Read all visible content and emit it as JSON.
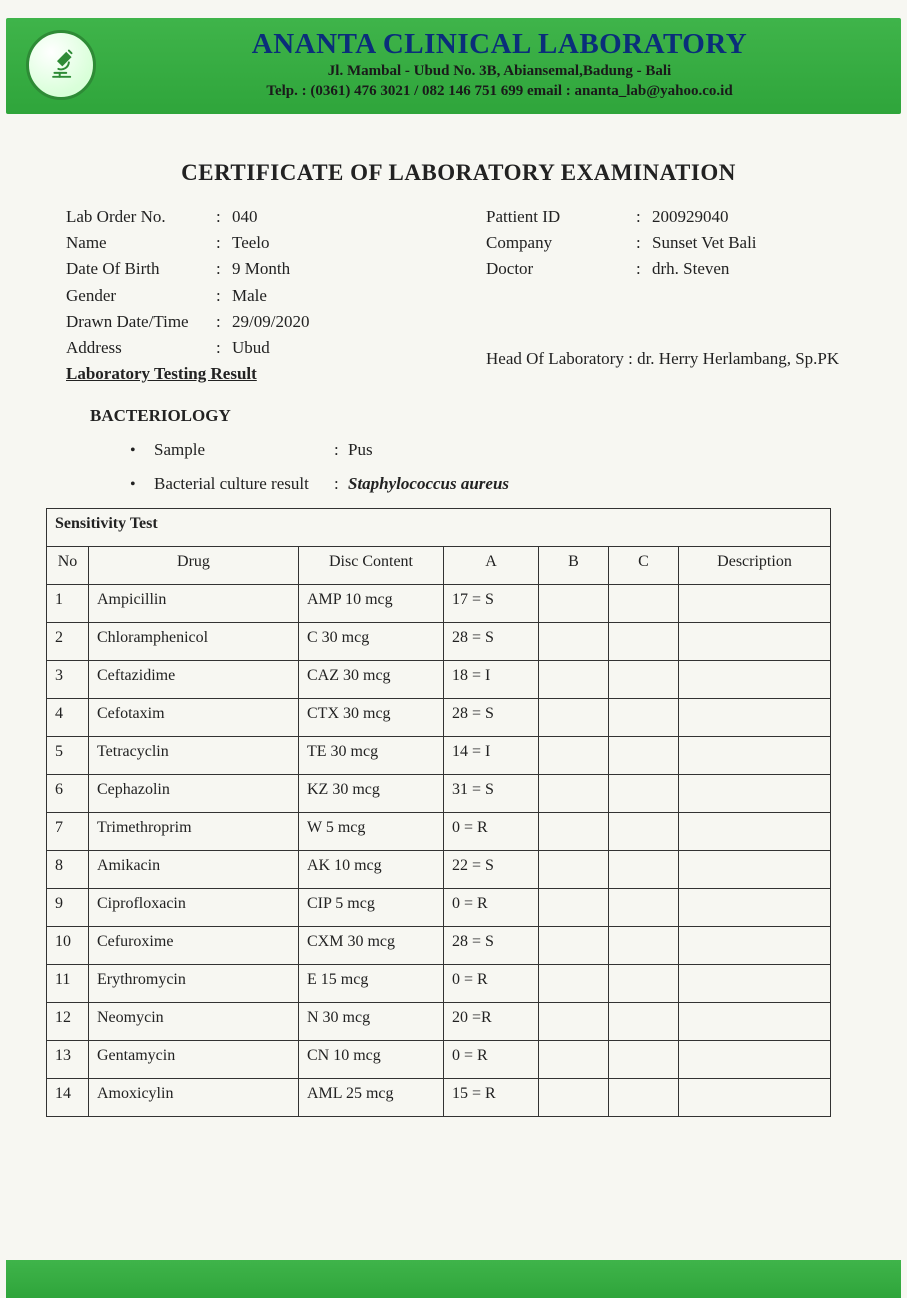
{
  "colors": {
    "brand_green": "#3fb44a",
    "brand_blue": "#0a2e7a",
    "page_bg": "#f7f7f2",
    "border": "#333333"
  },
  "header": {
    "lab_name": "ANANTA CLINICAL LABORATORY",
    "address": "Jl. Mambal - Ubud No. 3B, Abiansemal,Badung - Bali",
    "contact": "Telp. : (0361) 476 3021 / 082 146 751 699 email : ananta_lab@yahoo.co.id"
  },
  "certificate_title": "CERTIFICATE OF LABORATORY EXAMINATION",
  "patient_left": {
    "lab_order_no": {
      "label": "Lab Order No.",
      "value": "040"
    },
    "name": {
      "label": "Name",
      "value": "Teelo"
    },
    "dob": {
      "label": "Date Of Birth",
      "value": "9 Month"
    },
    "gender": {
      "label": "Gender",
      "value": "Male"
    },
    "drawn": {
      "label": "Drawn Date/Time",
      "value": "29/09/2020"
    },
    "address": {
      "label": "Address",
      "value": "Ubud"
    }
  },
  "patient_right": {
    "patient_id": {
      "label": "Pattient ID",
      "value": "200929040"
    },
    "company": {
      "label": "Company",
      "value": "Sunset Vet Bali"
    },
    "doctor": {
      "label": "Doctor",
      "value": "drh. Steven"
    }
  },
  "section_heading": "Laboratory Testing Result",
  "head_of_lab": {
    "label": "Head Of Laboratory",
    "value": "dr. Herry Herlambang, Sp.PK"
  },
  "bacteriology": {
    "title": "BACTERIOLOGY",
    "sample": {
      "label": "Sample",
      "value": "Pus"
    },
    "culture": {
      "label": "Bacterial culture result",
      "value": "Staphylococcus aureus"
    }
  },
  "sensitivity": {
    "caption": "Sensitivity Test",
    "columns": [
      "No",
      "Drug",
      "Disc Content",
      "A",
      "B",
      "C",
      "Description"
    ],
    "rows": [
      {
        "no": "1",
        "drug": "Ampicillin",
        "disc": "AMP 10 mcg",
        "a": "17 = S",
        "b": "",
        "c": "",
        "desc": ""
      },
      {
        "no": "2",
        "drug": "Chloramphenicol",
        "disc": "C 30 mcg",
        "a": "28 = S",
        "b": "",
        "c": "",
        "desc": ""
      },
      {
        "no": "3",
        "drug": "Ceftazidime",
        "disc": "CAZ 30 mcg",
        "a": "18 = I",
        "b": "",
        "c": "",
        "desc": ""
      },
      {
        "no": "4",
        "drug": "Cefotaxim",
        "disc": "CTX 30 mcg",
        "a": "28 = S",
        "b": "",
        "c": "",
        "desc": ""
      },
      {
        "no": "5",
        "drug": "Tetracyclin",
        "disc": "TE 30 mcg",
        "a": "14 = I",
        "b": "",
        "c": "",
        "desc": ""
      },
      {
        "no": "6",
        "drug": "Cephazolin",
        "disc": "KZ 30 mcg",
        "a": "31 = S",
        "b": "",
        "c": "",
        "desc": ""
      },
      {
        "no": "7",
        "drug": "Trimethroprim",
        "disc": "W 5 mcg",
        "a": "0 = R",
        "b": "",
        "c": "",
        "desc": ""
      },
      {
        "no": "8",
        "drug": "Amikacin",
        "disc": "AK 10 mcg",
        "a": "22 = S",
        "b": "",
        "c": "",
        "desc": ""
      },
      {
        "no": "9",
        "drug": "Ciprofloxacin",
        "disc": "CIP 5 mcg",
        "a": "0 = R",
        "b": "",
        "c": "",
        "desc": ""
      },
      {
        "no": "10",
        "drug": "Cefuroxime",
        "disc": "CXM 30 mcg",
        "a": "28 = S",
        "b": "",
        "c": "",
        "desc": ""
      },
      {
        "no": "11",
        "drug": "Erythromycin",
        "disc": "E 15 mcg",
        "a": "0 = R",
        "b": "",
        "c": "",
        "desc": ""
      },
      {
        "no": "12",
        "drug": "Neomycin",
        "disc": "N 30 mcg",
        "a": "20 =R",
        "b": "",
        "c": "",
        "desc": ""
      },
      {
        "no": "13",
        "drug": "Gentamycin",
        "disc": "CN 10 mcg",
        "a": "0 = R",
        "b": "",
        "c": "",
        "desc": ""
      },
      {
        "no": "14",
        "drug": "Amoxicylin",
        "disc": "AML 25 mcg",
        "a": "15 = R",
        "b": "",
        "c": "",
        "desc": ""
      }
    ]
  }
}
